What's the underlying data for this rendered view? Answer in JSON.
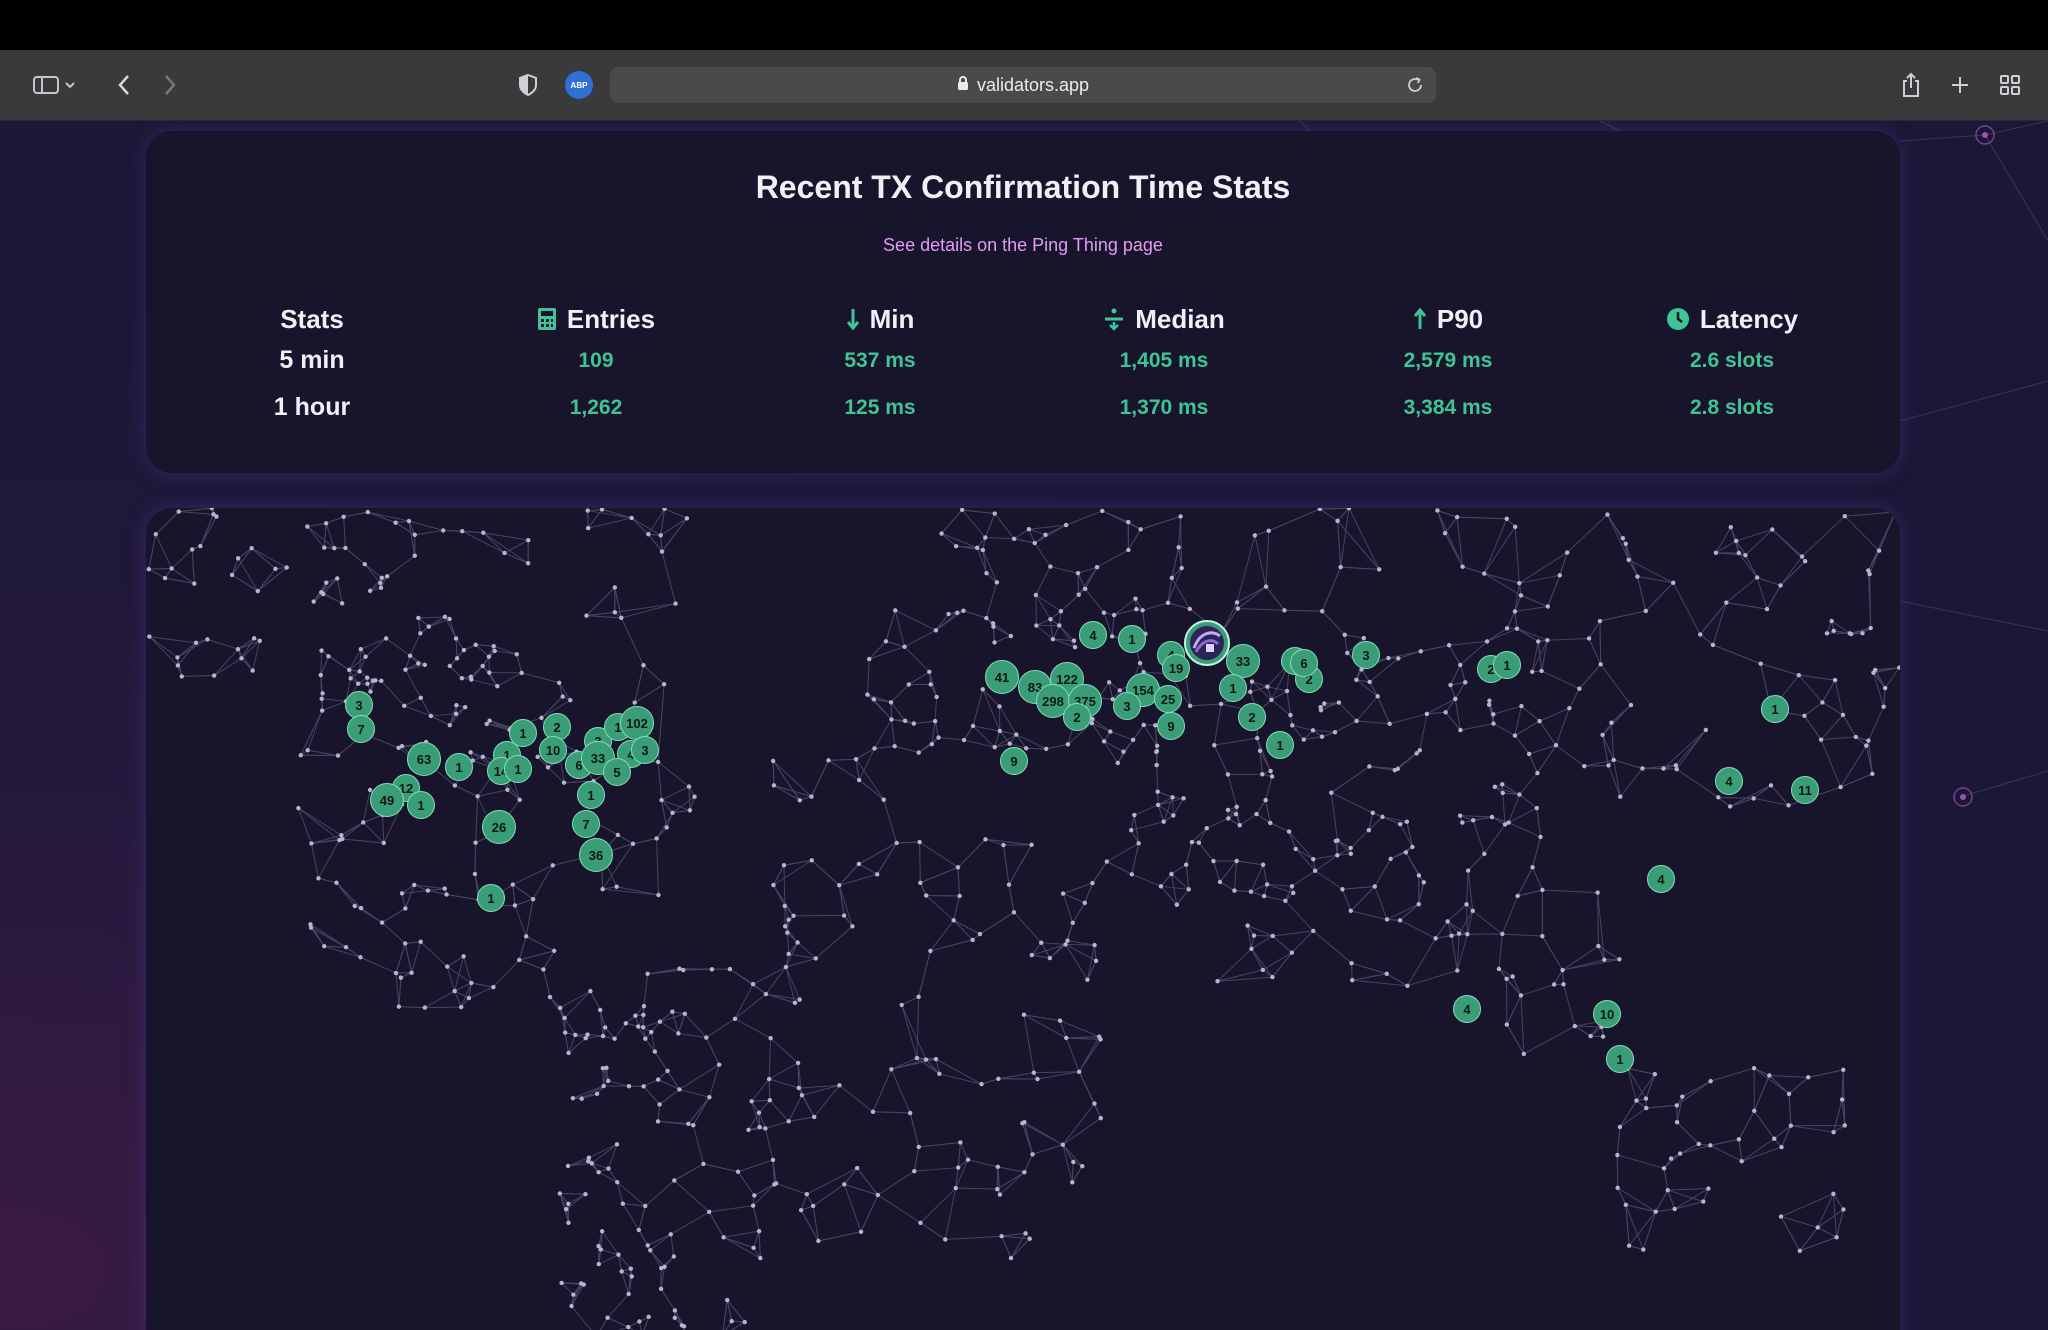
{
  "browser": {
    "url": "validators.app",
    "sidebar_icon": "sidebar-icon",
    "back_icon": "chevron-left-icon",
    "forward_icon": "chevron-right-icon",
    "privacy_icon": "shield-icon",
    "extension_label": "ABP",
    "share_icon": "share-icon",
    "new_tab_icon": "plus-icon",
    "tab_overview_icon": "grid-icon"
  },
  "stats": {
    "title": "Recent TX Confirmation Time Stats",
    "link": "See details on the Ping Thing page",
    "columns": [
      {
        "header": "Stats",
        "icon": "",
        "values": [
          "5 min",
          "1 hour"
        ]
      },
      {
        "header": "Entries",
        "icon": "calculator-icon",
        "values": [
          "109",
          "1,262"
        ]
      },
      {
        "header": "Min",
        "icon": "arrow-down-icon",
        "values": [
          "537 ms",
          "125 ms"
        ]
      },
      {
        "header": "Median",
        "icon": "divide-icon",
        "values": [
          "1,405 ms",
          "1,370 ms"
        ]
      },
      {
        "header": "P90",
        "icon": "arrow-up-icon",
        "values": [
          "2,579 ms",
          "3,384 ms"
        ]
      },
      {
        "header": "Latency",
        "icon": "clock-icon",
        "values": [
          "2.6 slots",
          "2.8 slots"
        ]
      }
    ]
  },
  "map": {
    "marker_color": "#3b9c78",
    "markers": [
      {
        "label": "3"
      },
      {
        "label": "7"
      },
      {
        "label": "63"
      },
      {
        "label": "1"
      },
      {
        "label": "1"
      },
      {
        "label": "14"
      },
      {
        "label": "1"
      },
      {
        "label": "1"
      },
      {
        "label": "2"
      },
      {
        "label": "10"
      },
      {
        "label": "6"
      },
      {
        "label": "3"
      },
      {
        "label": "33"
      },
      {
        "label": "1"
      },
      {
        "label": "102"
      },
      {
        "label": "4"
      },
      {
        "label": "3"
      },
      {
        "label": "5"
      },
      {
        "label": "1"
      },
      {
        "label": "7"
      },
      {
        "label": "36"
      },
      {
        "label": "12"
      },
      {
        "label": "49"
      },
      {
        "label": "1"
      },
      {
        "label": "26"
      },
      {
        "label": "1"
      },
      {
        "label": "41"
      },
      {
        "label": "83"
      },
      {
        "label": "122"
      },
      {
        "label": "298"
      },
      {
        "label": "375"
      },
      {
        "label": "2"
      },
      {
        "label": "9"
      },
      {
        "label": "4"
      },
      {
        "label": "1"
      },
      {
        "label": "4"
      },
      {
        "label": "19"
      },
      {
        "label": "154"
      },
      {
        "label": "3"
      },
      {
        "label": "25"
      },
      {
        "label": "9"
      },
      {
        "label": "33"
      },
      {
        "label": "1"
      },
      {
        "label": "2"
      },
      {
        "label": "1"
      },
      {
        "label": "6"
      },
      {
        "label": "2"
      },
      {
        "label": "3"
      },
      {
        "label": "1"
      },
      {
        "label": "2"
      },
      {
        "label": "1"
      },
      {
        "label": "4"
      },
      {
        "label": "11"
      },
      {
        "label": "1"
      },
      {
        "label": "4"
      },
      {
        "label": "4"
      },
      {
        "label": "10"
      },
      {
        "label": "1"
      }
    ]
  }
}
